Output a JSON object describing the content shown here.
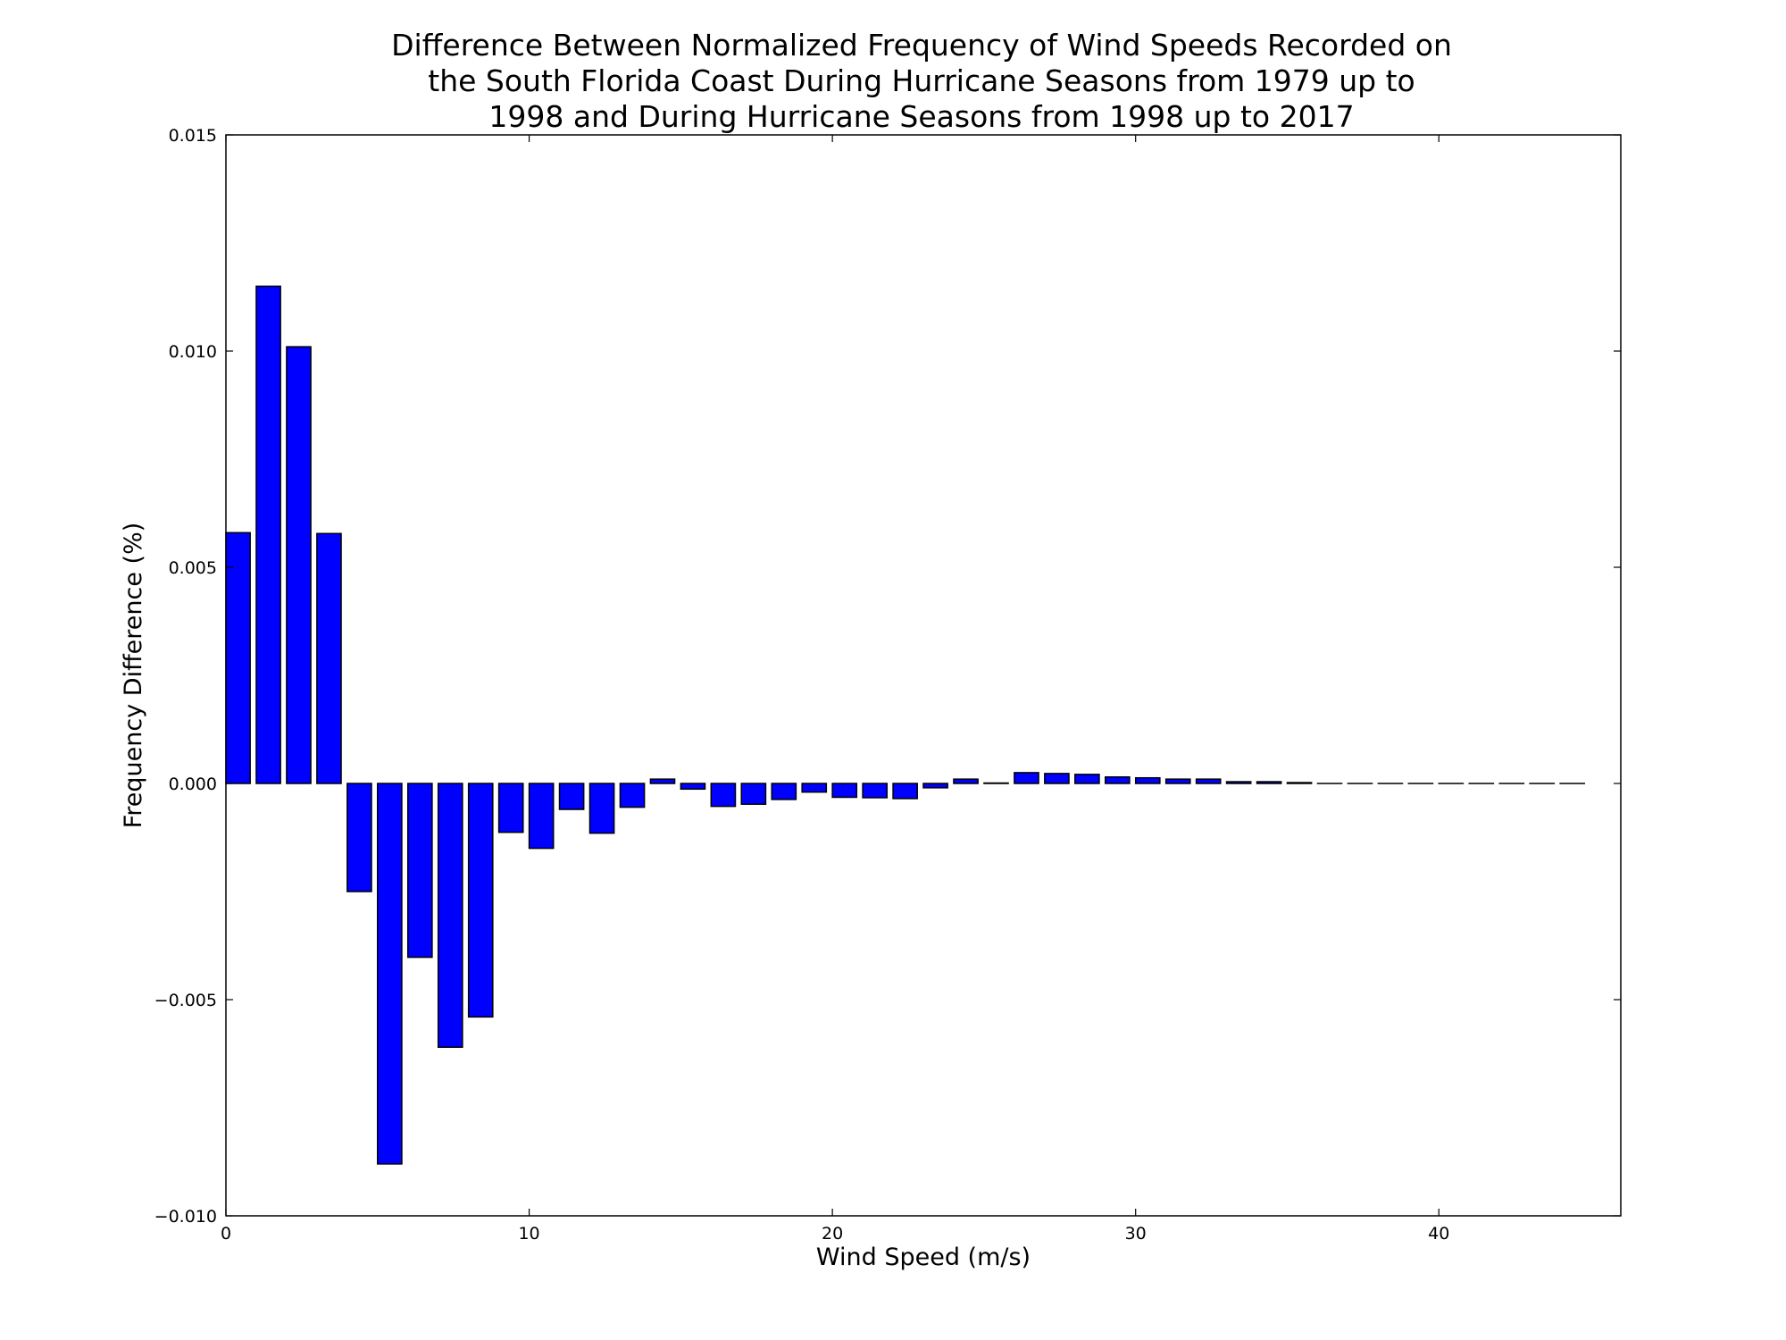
{
  "chart_data": {
    "type": "bar",
    "title_lines": [
      "Difference Between Normalized Frequency of Wind Speeds Recorded on",
      "the South Florida Coast During Hurricane Seasons from 1979 up to",
      "1998 and During Hurricane Seasons from 1998 up to 2017"
    ],
    "xlabel": "Wind Speed (m/s)",
    "ylabel": "Frequency Difference (%)",
    "xlim": [
      0,
      46
    ],
    "ylim": [
      -0.01,
      0.015
    ],
    "x_ticks": [
      0,
      10,
      20,
      30,
      40
    ],
    "x_tick_labels": [
      "0",
      "10",
      "20",
      "30",
      "40"
    ],
    "y_ticks": [
      -0.01,
      -0.005,
      0.0,
      0.005,
      0.01,
      0.015
    ],
    "y_tick_labels": [
      "−0.010",
      "−0.005",
      "0.000",
      "0.005",
      "0.010",
      "0.015"
    ],
    "bar_width": 0.8,
    "bar_color": "#0000ff",
    "edge_color": "#000000",
    "grid": false,
    "x": [
      0,
      1,
      2,
      3,
      4,
      5,
      6,
      7,
      8,
      9,
      10,
      11,
      12,
      13,
      14,
      15,
      16,
      17,
      18,
      19,
      20,
      21,
      22,
      23,
      24,
      25,
      26,
      27,
      28,
      29,
      30,
      31,
      32,
      33,
      34,
      35,
      36,
      37,
      38,
      39,
      40,
      41,
      42,
      43,
      44
    ],
    "values": [
      0.0058,
      0.0115,
      0.0101,
      0.00578,
      -0.0025,
      -0.0088,
      -0.00402,
      -0.0061,
      -0.0054,
      -0.00113,
      -0.0015,
      -0.0006,
      -0.00115,
      -0.00055,
      0.0001,
      -0.00013,
      -0.00053,
      -0.00048,
      -0.00037,
      -0.0002,
      -0.00032,
      -0.00033,
      -0.00035,
      -0.0001,
      0.0001,
      1e-05,
      0.00025,
      0.00023,
      0.00021,
      0.00015,
      0.00013,
      0.0001,
      0.0001,
      4e-05,
      4e-05,
      2e-05,
      0.0,
      0.0,
      0.0,
      0.0,
      0.0,
      0.0,
      0.0,
      0.0,
      0.0
    ]
  }
}
